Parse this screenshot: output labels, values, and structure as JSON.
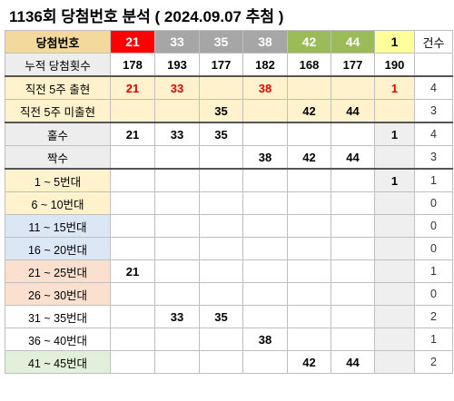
{
  "title": "1136회 당첨번호 분석 ( 2024.09.07 추첨 )",
  "header": {
    "label": "당첨번호",
    "numbers": [
      "21",
      "33",
      "35",
      "38",
      "42",
      "44"
    ],
    "number_colors": [
      "#ff0000",
      "#a6a6a6",
      "#a6a6a6",
      "#a6a6a6",
      "#9bbb59",
      "#9bbb59"
    ],
    "bonus": "1",
    "count_header": "건수"
  },
  "cumulative": {
    "label": "누적 당첨횟수",
    "values": [
      "178",
      "193",
      "177",
      "182",
      "168",
      "177"
    ],
    "bonus": "190"
  },
  "recent_5_drawn": {
    "label": "직전 5주 출현",
    "values": [
      "21",
      "33",
      "",
      "38",
      "",
      ""
    ],
    "bonus": "1",
    "count": "4"
  },
  "recent_5_not_drawn": {
    "label": "직전 5주 미출현",
    "values": [
      "",
      "",
      "35",
      "",
      "42",
      "44"
    ],
    "bonus": "",
    "count": "3"
  },
  "odd": {
    "label": "홀수",
    "values": [
      "21",
      "33",
      "35",
      "",
      "",
      ""
    ],
    "bonus": "1",
    "count": "4"
  },
  "even": {
    "label": "짝수",
    "values": [
      "",
      "",
      "",
      "38",
      "42",
      "44"
    ],
    "bonus": "",
    "count": "3"
  },
  "ranges": [
    {
      "label": "1 ~ 5번대",
      "values": [
        "",
        "",
        "",
        "",
        "",
        ""
      ],
      "bonus": "1",
      "count": "1"
    },
    {
      "label": "6 ~ 10번대",
      "values": [
        "",
        "",
        "",
        "",
        "",
        ""
      ],
      "bonus": "",
      "count": "0"
    },
    {
      "label": "11 ~ 15번대",
      "values": [
        "",
        "",
        "",
        "",
        "",
        ""
      ],
      "bonus": "",
      "count": "0"
    },
    {
      "label": "16 ~ 20번대",
      "values": [
        "",
        "",
        "",
        "",
        "",
        ""
      ],
      "bonus": "",
      "count": "0"
    },
    {
      "label": "21 ~ 25번대",
      "values": [
        "21",
        "",
        "",
        "",
        "",
        ""
      ],
      "bonus": "",
      "count": "1"
    },
    {
      "label": "26 ~ 30번대",
      "values": [
        "",
        "",
        "",
        "",
        "",
        ""
      ],
      "bonus": "",
      "count": "0"
    },
    {
      "label": "31 ~ 35번대",
      "values": [
        "",
        "33",
        "35",
        "",
        "",
        ""
      ],
      "bonus": "",
      "count": "2"
    },
    {
      "label": "36 ~ 40번대",
      "values": [
        "",
        "",
        "",
        "38",
        "",
        ""
      ],
      "bonus": "",
      "count": "1"
    },
    {
      "label": "41 ~ 45번대",
      "values": [
        "",
        "",
        "",
        "",
        "42",
        "44"
      ],
      "bonus": "",
      "count": "2"
    }
  ],
  "colors": {
    "yellow_band": "#fff2cc",
    "blue_band": "#dbe7f4",
    "peach_band": "#fbe0d0",
    "green_band": "#e2efda",
    "bonus_column": "#efefef",
    "red_text": "#e00000"
  }
}
